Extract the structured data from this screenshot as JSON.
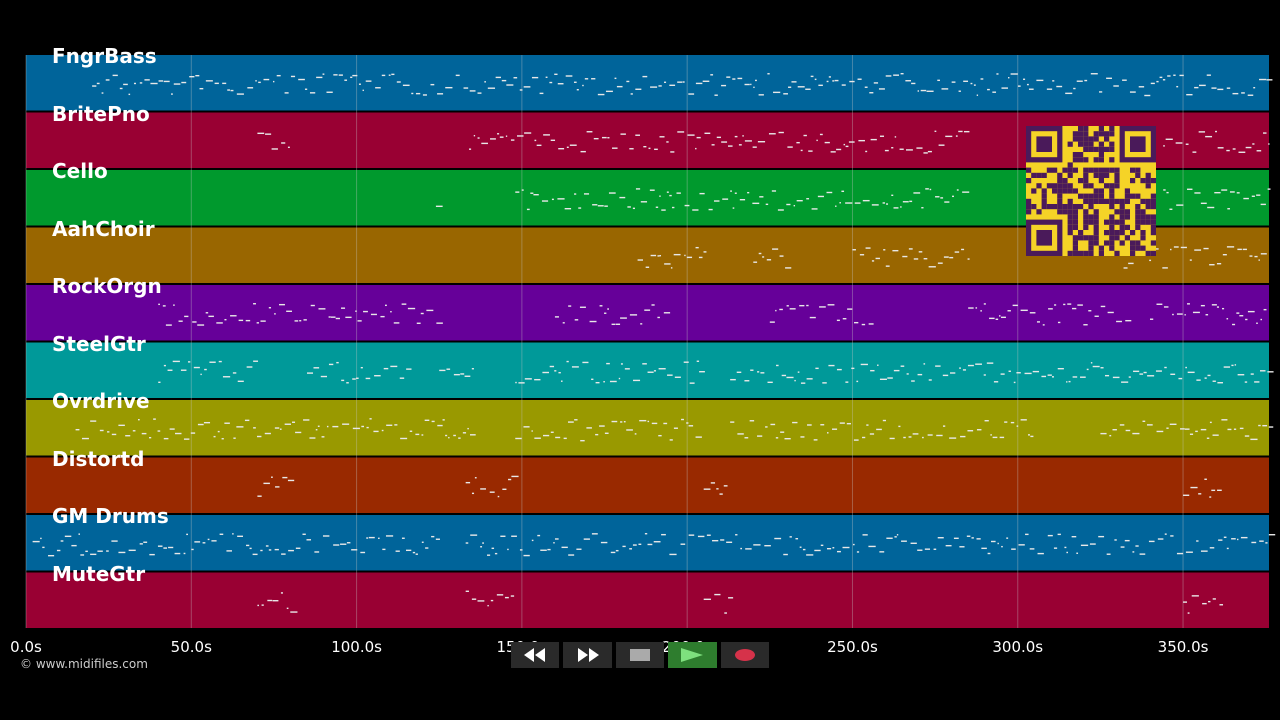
{
  "tracks": [
    {
      "name": "FngrBass",
      "color": "#00649a"
    },
    {
      "name": "BritePno",
      "color": "#990033"
    },
    {
      "name": "Cello",
      "color": "#00992d"
    },
    {
      "name": "AahChoir",
      "color": "#996600"
    },
    {
      "name": "RockOrgn",
      "color": "#660099"
    },
    {
      "name": "SteelGtr",
      "color": "#009999"
    },
    {
      "name": "Ovrdrive",
      "color": "#999900"
    },
    {
      "name": "Distortd",
      "color": "#992900"
    },
    {
      "name": "GM Drums",
      "color": "#00649a"
    },
    {
      "name": "MuteGtr",
      "color": "#990033"
    }
  ],
  "time_axis": {
    "max_seconds": 376,
    "ticks": [
      {
        "value": 0,
        "label": "0.0s"
      },
      {
        "value": 50,
        "label": "50.0s"
      },
      {
        "value": 100,
        "label": "100.0s"
      },
      {
        "value": 150,
        "label": "150.0s"
      },
      {
        "value": 200,
        "label": "200.0s"
      },
      {
        "value": 250,
        "label": "250.0s"
      },
      {
        "value": 300,
        "label": "300.0s"
      },
      {
        "value": 350,
        "label": "350.0s"
      }
    ]
  },
  "credit": "© www.midifiles.com",
  "controls": {
    "rewind": "rewind-icon",
    "fast_forward": "fast-forward-icon",
    "stop": "stop-icon",
    "play": "play-icon",
    "record": "record-icon"
  },
  "colors": {
    "background": "#000000",
    "note": "#e8e8e8",
    "grid": "#c8c8c8",
    "qr_background": "#f5d327",
    "qr_modules": "#4a1a5a",
    "play_button": "#2e7d2e",
    "record_button": "#d6324a"
  }
}
